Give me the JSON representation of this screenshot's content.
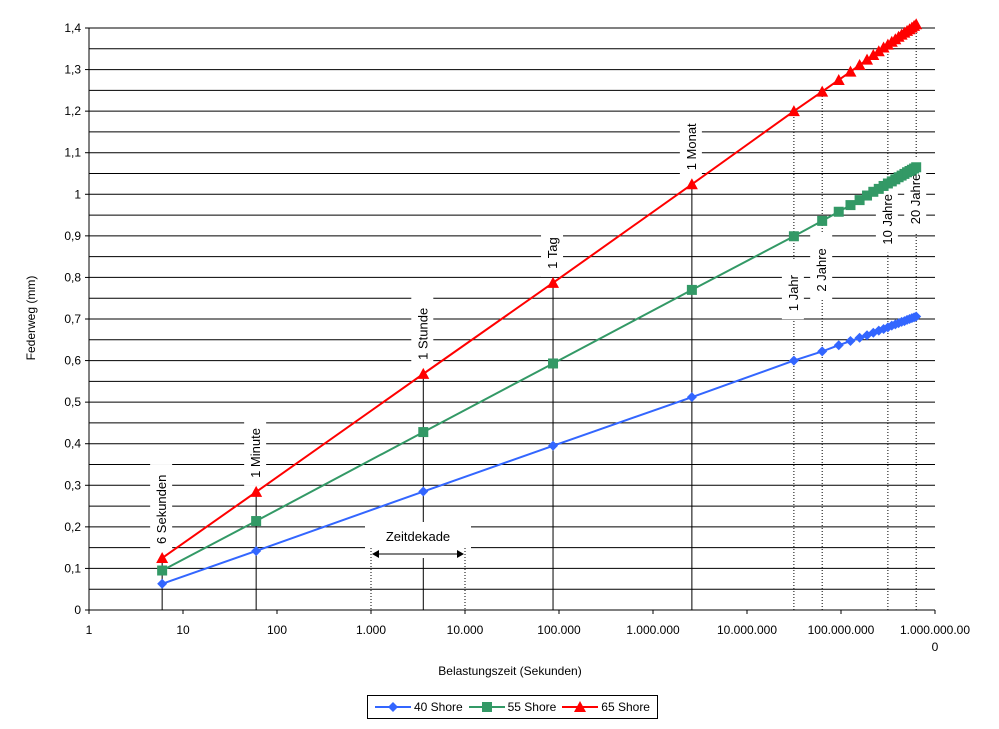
{
  "chart_data": {
    "type": "line",
    "title": "",
    "xlabel": "Belastungszeit (Sekunden)",
    "ylabel": "Federweg (mm)",
    "x_scale": "log",
    "xlim": [
      1,
      1000000000
    ],
    "ylim": [
      0,
      1.4
    ],
    "grid": "horizontal",
    "legend_position": "bottom",
    "x_ticks": [
      {
        "value": 1,
        "label": "1"
      },
      {
        "value": 10,
        "label": "10"
      },
      {
        "value": 100,
        "label": "100"
      },
      {
        "value": 1000,
        "label": "1.000"
      },
      {
        "value": 10000,
        "label": "10.000"
      },
      {
        "value": 100000,
        "label": "100.000"
      },
      {
        "value": 1000000,
        "label": "1.000.000"
      },
      {
        "value": 10000000,
        "label": "10.000.000"
      },
      {
        "value": 100000000,
        "label": "100.000.000"
      },
      {
        "value": 1000000000,
        "label": "1.000.000.00",
        "label2": "0"
      }
    ],
    "y_ticks": [
      {
        "value": 0,
        "label": "0"
      },
      {
        "value": 0.1,
        "label": "0,1"
      },
      {
        "value": 0.2,
        "label": "0,2"
      },
      {
        "value": 0.3,
        "label": "0,3"
      },
      {
        "value": 0.4,
        "label": "0,4"
      },
      {
        "value": 0.5,
        "label": "0,5"
      },
      {
        "value": 0.6,
        "label": "0,6"
      },
      {
        "value": 0.7,
        "label": "0,7"
      },
      {
        "value": 0.8,
        "label": "0,8"
      },
      {
        "value": 0.9,
        "label": "0,9"
      },
      {
        "value": 1.0,
        "label": "1"
      },
      {
        "value": 1.1,
        "label": "1,1"
      },
      {
        "value": 1.2,
        "label": "1,2"
      },
      {
        "value": 1.3,
        "label": "1,3"
      },
      {
        "value": 1.4,
        "label": "1,4"
      }
    ],
    "x": [
      6,
      60,
      3600,
      86400,
      2592000,
      31536000,
      63072000,
      94608000,
      126144000,
      157680000,
      189216000,
      220752000,
      252288000,
      283824000,
      315360000,
      346896000,
      378432000,
      409968000,
      441504000,
      473040000,
      504576000,
      536112000,
      567648000,
      599184000,
      630720000
    ],
    "series": [
      {
        "name": "40 Shore",
        "color": "#3366ff",
        "marker": "diamond",
        "values": [
          0.063,
          0.142,
          0.285,
          0.395,
          0.512,
          0.6,
          0.622,
          0.637,
          0.647,
          0.655,
          0.661,
          0.667,
          0.672,
          0.676,
          0.68,
          0.684,
          0.687,
          0.69,
          0.693,
          0.695,
          0.698,
          0.7,
          0.702,
          0.704,
          0.706
        ]
      },
      {
        "name": "55 Shore",
        "color": "#339966",
        "marker": "square",
        "values": [
          0.095,
          0.214,
          0.428,
          0.593,
          0.77,
          0.899,
          0.936,
          0.958,
          0.974,
          0.986,
          0.997,
          1.006,
          1.013,
          1.02,
          1.026,
          1.031,
          1.036,
          1.041,
          1.045,
          1.049,
          1.053,
          1.056,
          1.059,
          1.062,
          1.065
        ]
      },
      {
        "name": "65 Shore",
        "color": "#ff0000",
        "marker": "triangle",
        "values": [
          0.125,
          0.284,
          0.568,
          0.787,
          1.024,
          1.2,
          1.247,
          1.275,
          1.295,
          1.311,
          1.324,
          1.335,
          1.344,
          1.353,
          1.36,
          1.367,
          1.373,
          1.379,
          1.384,
          1.389,
          1.393,
          1.397,
          1.401,
          1.405,
          1.409
        ]
      }
    ],
    "annotations": [
      {
        "label": "6 Sekunden",
        "x": 6,
        "y_top": 0.125
      },
      {
        "label": "1 Minute",
        "x": 60,
        "y_top": 0.284
      },
      {
        "label": "1 Stunde",
        "x": 3600,
        "y_top": 0.568
      },
      {
        "label": "1 Tag",
        "x": 86400,
        "y_top": 0.787
      },
      {
        "label": "1 Monat",
        "x": 2592000,
        "y_top": 1.024
      },
      {
        "label": "1 Jahr",
        "x": 31536000,
        "y_top": 1.2,
        "dotted": true
      },
      {
        "label": "2 Jahre",
        "x": 63072000,
        "y_top": 1.247,
        "dotted": true
      },
      {
        "label": "10 Jahre",
        "x": 315360000,
        "y_top": 1.36,
        "dotted": true
      },
      {
        "label": "20 Jahre",
        "x": 630720000,
        "y_top": 1.409,
        "dotted": true
      }
    ],
    "zeitdekade": {
      "label": "Zeitdekade",
      "x_from": 1000,
      "x_to": 10000
    }
  }
}
